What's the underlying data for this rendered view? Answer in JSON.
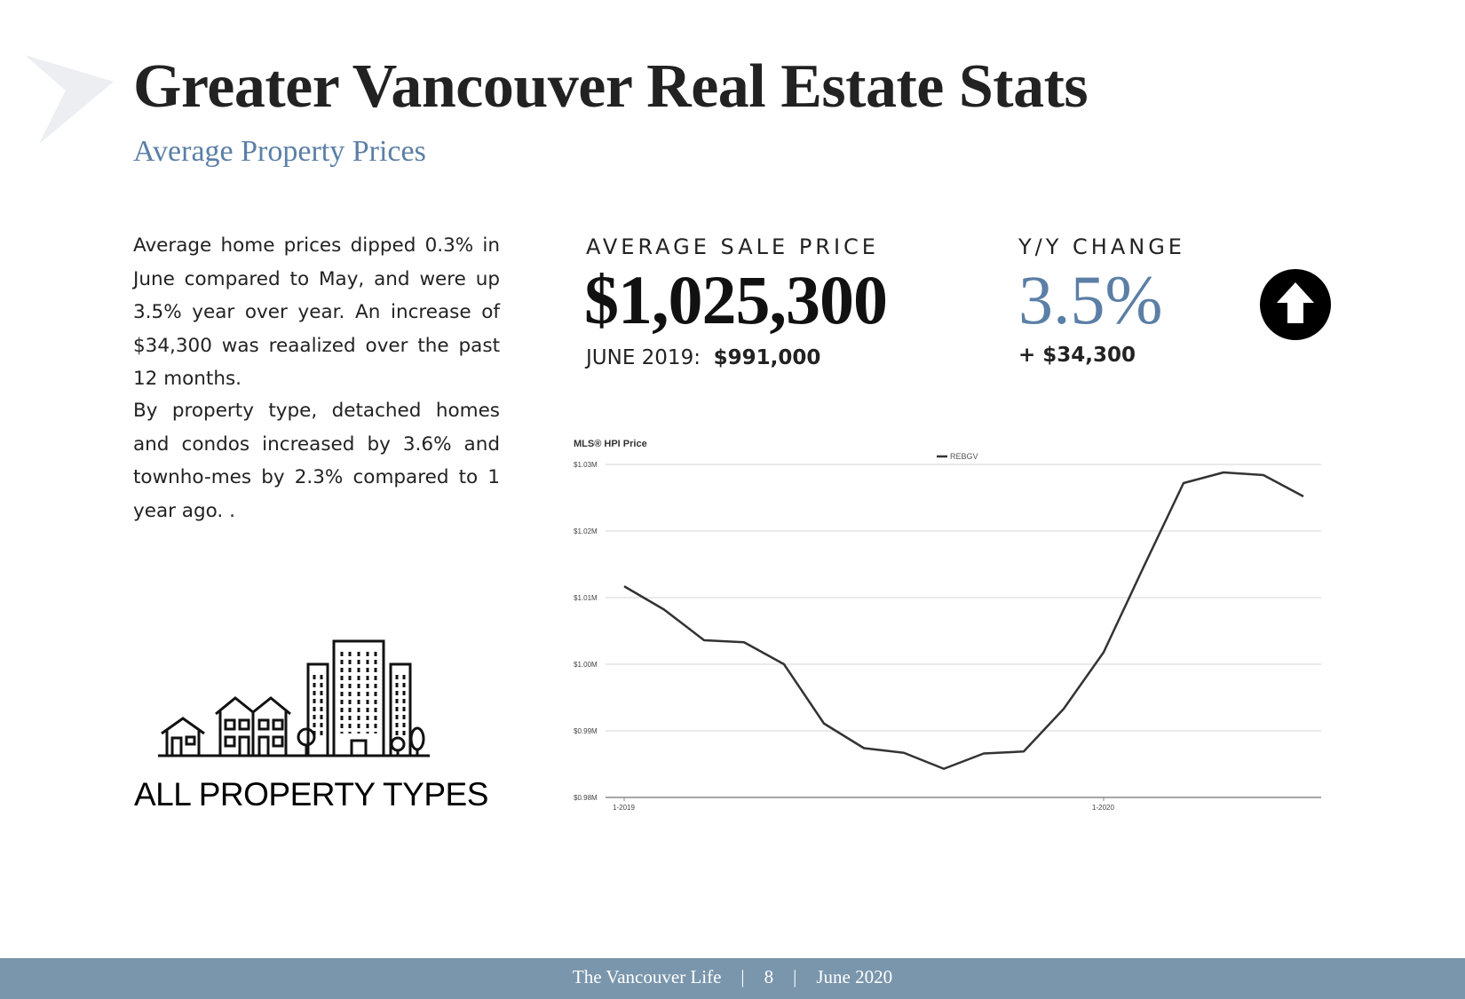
{
  "header": {
    "title": "Greater Vancouver Real Estate Stats",
    "subtitle": "Average Property Prices"
  },
  "body": {
    "paragraph1": "Average home prices dipped 0.3% in June compared to May, and were up 3.5% year over year.  An increase of $34,300 was reaalized over the past 12 months.",
    "paragraph2": "By property type, detached homes and condos increased by 3.6% and townho-mes by 2.3% compared to 1 year ago.  ."
  },
  "kpis": {
    "avg_sale_label": "AVERAGE SALE PRICE",
    "avg_sale_value": "$1,025,300",
    "prev_label": "JUNE 2019:",
    "prev_value": "$991,000",
    "yy_label": "Y/Y CHANGE",
    "yy_value": "3.5%",
    "yy_delta": "+ $34,300",
    "trend_icon": "up-arrow-icon"
  },
  "property_types_label": "ALL PROPERTY TYPES",
  "colors": {
    "accent": "#5b7fa6",
    "footer": "#7a96ad",
    "line": "#333333"
  },
  "chart_data": {
    "type": "line",
    "title": "MLS® HPI Price",
    "legend": "top-center",
    "series": [
      {
        "name": "REBGV",
        "values": [
          1.0117,
          1.0082,
          1.0036,
          1.0033,
          1.0,
          0.9911,
          0.9874,
          0.9867,
          0.9843,
          0.9866,
          0.9869,
          0.9933,
          1.0018,
          1.0146,
          1.0272,
          1.0288,
          1.0284,
          1.0252
        ]
      }
    ],
    "x_tick_labels": [
      "1-2019",
      "1-2020"
    ],
    "x_tick_index": [
      0,
      12
    ],
    "y_ticks": [
      0.98,
      0.99,
      1.0,
      1.01,
      1.02,
      1.03
    ],
    "y_tick_labels": [
      "$0.98M",
      "$0.99M",
      "$1.00M",
      "$1.01M",
      "$1.02M",
      "$1.03M"
    ],
    "ylim": [
      0.98,
      1.03
    ],
    "grid": true
  },
  "footer": {
    "publication": "The Vancouver Life",
    "page": "8",
    "date": "June 2020"
  }
}
